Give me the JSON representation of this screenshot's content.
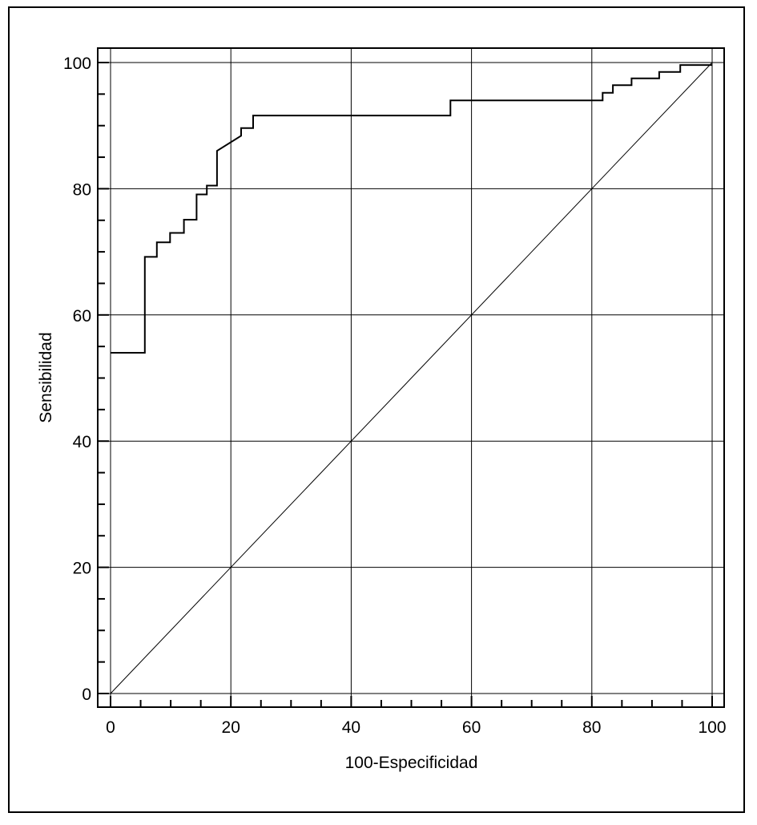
{
  "chart_data": {
    "type": "line",
    "xlabel": "100-Especificidad",
    "ylabel": "Sensibilidad",
    "xlim": [
      0,
      100
    ],
    "ylim": [
      0,
      100
    ],
    "x_ticks": [
      "0",
      "20",
      "40",
      "60",
      "80",
      "100"
    ],
    "y_ticks": [
      "0",
      "20",
      "40",
      "60",
      "80",
      "100"
    ],
    "grid": true,
    "series": [
      {
        "style": "step",
        "x": [
          0,
          5.7,
          5.7,
          7.7,
          7.7,
          9.9,
          9.9,
          12.2,
          12.2,
          14.3,
          14.3,
          16.0,
          16.0,
          17.7,
          17.7,
          21.7,
          21.7,
          23.7,
          23.7,
          56.5,
          56.5,
          81.8,
          81.8,
          83.5,
          83.5,
          86.6,
          86.6,
          91.2,
          91.2,
          94.7,
          94.7,
          100
        ],
        "y": [
          54.0,
          54.0,
          69.2,
          69.2,
          71.5,
          71.5,
          73.0,
          73.0,
          75.1,
          75.1,
          79.1,
          79.1,
          80.5,
          80.5,
          86.0,
          88.4,
          89.6,
          89.6,
          91.6,
          91.6,
          94.0,
          94.0,
          95.2,
          95.2,
          96.4,
          96.4,
          97.5,
          97.5,
          98.5,
          98.5,
          99.6,
          99.6
        ]
      },
      {
        "style": "reference",
        "x": [
          0,
          100
        ],
        "y": [
          0,
          100
        ]
      }
    ]
  },
  "colors": {
    "line": "#000000",
    "grid": "#000000",
    "background": "#ffffff"
  }
}
